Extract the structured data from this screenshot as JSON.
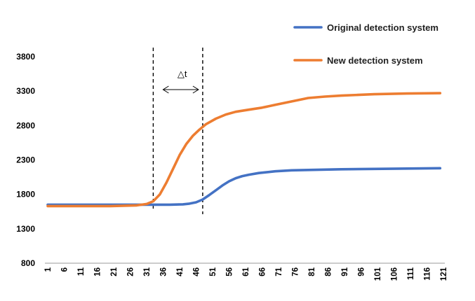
{
  "chart_data": {
    "type": "line",
    "title": "",
    "xlabel": "",
    "ylabel": "",
    "ylim": [
      800,
      3800
    ],
    "yticks": [
      800,
      1300,
      1800,
      2300,
      2800,
      3300,
      3800
    ],
    "xlim": [
      1,
      121
    ],
    "xticks": [
      1,
      6,
      11,
      16,
      21,
      26,
      31,
      36,
      41,
      46,
      51,
      56,
      61,
      66,
      71,
      76,
      81,
      86,
      91,
      96,
      101,
      106,
      111,
      116,
      121
    ],
    "grid": false,
    "legend_position": "top-right",
    "series": [
      {
        "name": "Original detection system",
        "color": "#4472C4",
        "x": [
          1,
          10,
          20,
          30,
          34,
          38,
          42,
          44,
          46,
          48,
          50,
          52,
          54,
          56,
          58,
          60,
          62,
          65,
          70,
          75,
          80,
          90,
          100,
          110,
          120
        ],
        "y": [
          1650,
          1650,
          1650,
          1650,
          1650,
          1650,
          1655,
          1665,
          1685,
          1725,
          1790,
          1860,
          1930,
          1990,
          2035,
          2065,
          2085,
          2110,
          2135,
          2150,
          2155,
          2165,
          2170,
          2175,
          2180
        ]
      },
      {
        "name": "New detection system",
        "color": "#ED7D31",
        "x": [
          1,
          10,
          20,
          28,
          31,
          33,
          35,
          37,
          39,
          41,
          43,
          45,
          47,
          49,
          52,
          55,
          58,
          62,
          66,
          70,
          75,
          80,
          85,
          90,
          95,
          100,
          110,
          120
        ],
        "y": [
          1630,
          1630,
          1630,
          1640,
          1660,
          1700,
          1800,
          1970,
          2170,
          2370,
          2530,
          2650,
          2740,
          2820,
          2900,
          2960,
          3000,
          3030,
          3060,
          3100,
          3150,
          3200,
          3220,
          3235,
          3245,
          3255,
          3265,
          3270
        ]
      }
    ],
    "annotations": [
      {
        "label": "△t",
        "x_start": 33,
        "x_end": 48
      }
    ]
  }
}
